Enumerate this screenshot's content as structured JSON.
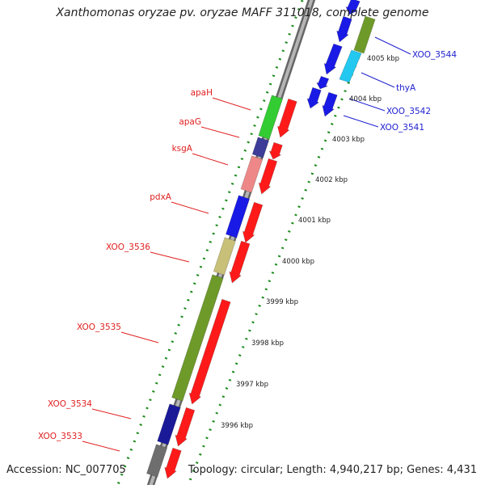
{
  "title": "Xanthomonas oryzae pv. oryzae MAFF 311018, complete genome",
  "footer": {
    "accession": "Accession: NC_007705",
    "summary": "Topology: circular; Length: 4,940,217 bp; Genes: 4,431"
  },
  "ruler": {
    "labels": [
      "4005 kbp",
      "4004 kbp",
      "4003 kbp",
      "4002 kbp",
      "4001 kbp",
      "4000 kbp",
      "3999 kbp",
      "3998 kbp",
      "3997 kbp",
      "3996 kbp"
    ]
  },
  "colors": {
    "backbone": "#8a8a8a",
    "forward_arrow": "#ff1a1a",
    "reverse_arrow": "#1a1ae6",
    "label_left": "#e02020",
    "label_right": "#2020d0",
    "ticks": "#1a8a1a"
  },
  "left_genes": [
    {
      "label": "apaH",
      "color": "#33cc33"
    },
    {
      "label": "apaG",
      "color": "#3d3d99"
    },
    {
      "label": "ksgA",
      "color": "#ee8888"
    },
    {
      "label": "pdxA",
      "color": "#1a1ae6"
    },
    {
      "label": "XOO_3536",
      "color": "#c8c078"
    },
    {
      "label": "XOO_3535",
      "color": "#6e9a2a"
    },
    {
      "label": "XOO_3534",
      "color": "#1a1a99"
    },
    {
      "label": "XOO_3533",
      "color": "#6e6e6e"
    }
  ],
  "right_genes": [
    {
      "label": "XOO_3544",
      "color": "#6e9a2a"
    },
    {
      "label": "thyA",
      "color": "#22c8f0"
    },
    {
      "label": "XOO_3542",
      "color": "#1a1ae6"
    },
    {
      "label": "XOO_3541",
      "color": "#1a1ae6"
    }
  ]
}
